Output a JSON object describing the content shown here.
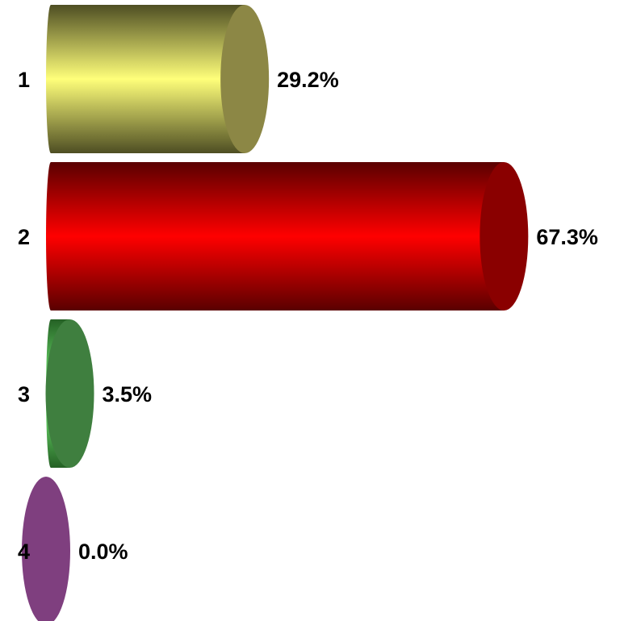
{
  "chart_data": {
    "type": "bar",
    "orientation": "horizontal",
    "style": "3d-cylinder",
    "categories": [
      "1",
      "2",
      "3",
      "4"
    ],
    "values": [
      29.2,
      67.3,
      3.5,
      0.0
    ],
    "value_labels": [
      "29.2%",
      "67.3%",
      "3.5%",
      "0.0%"
    ],
    "unit": "%",
    "title": "",
    "xlabel": "",
    "ylabel": "",
    "xlim": [
      0,
      100
    ],
    "grid": false,
    "legend": "none",
    "colors": [
      {
        "light": "#ffff7a",
        "dark": "#4e4e23",
        "cap": "#8c8745"
      },
      {
        "light": "#ff0000",
        "dark": "#5a0000",
        "cap": "#8a0000"
      },
      {
        "light": "#7dff7d",
        "dark": "#256125",
        "cap": "#3f7f3f"
      },
      {
        "light": "#ad6bad",
        "dark": "#5a2f5a",
        "cap": "#7f3f7f"
      }
    ]
  }
}
